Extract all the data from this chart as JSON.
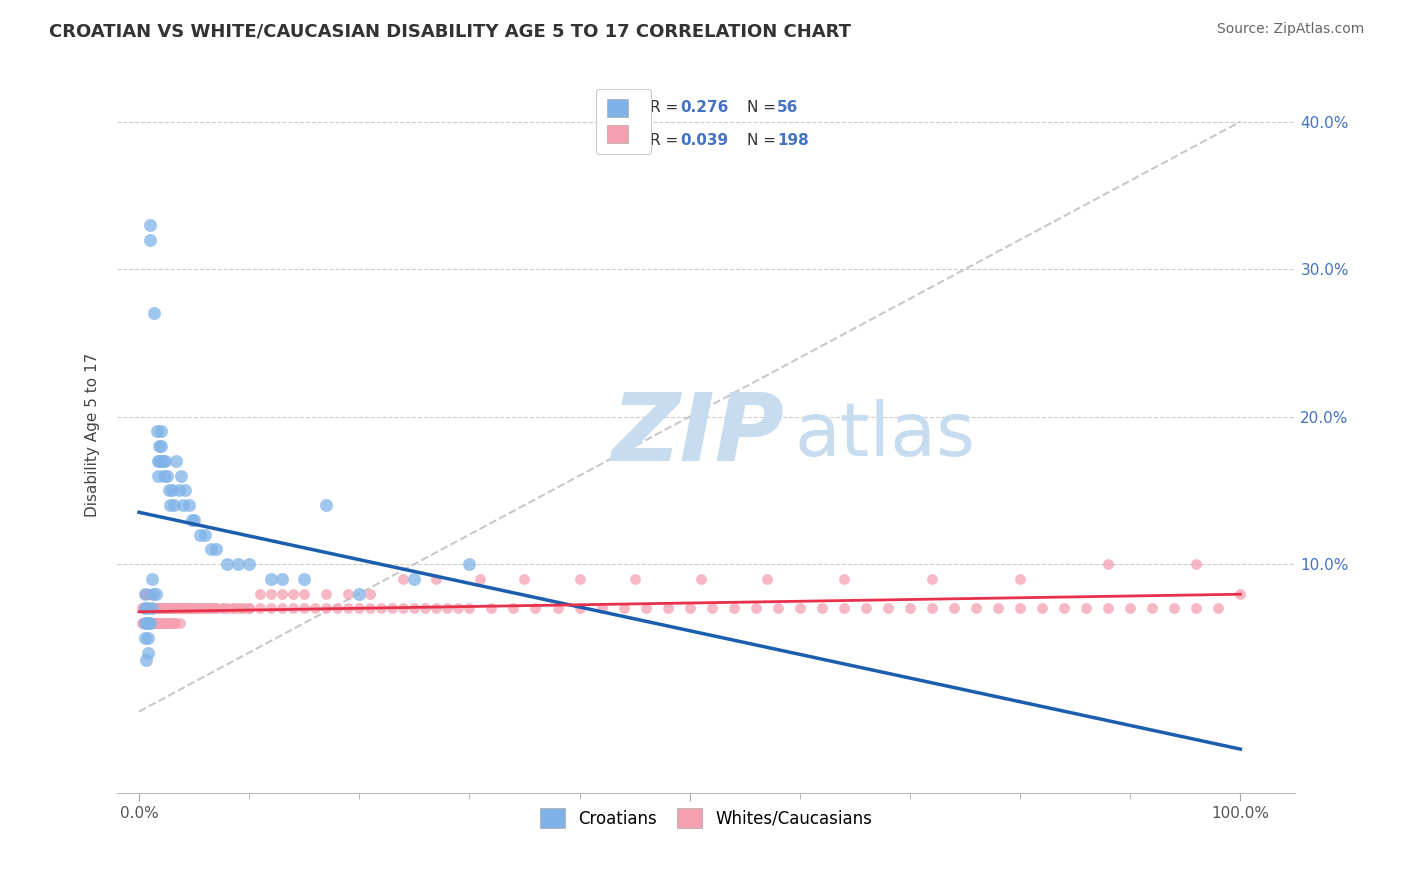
{
  "title": "CROATIAN VS WHITE/CAUCASIAN DISABILITY AGE 5 TO 17 CORRELATION CHART",
  "source": "Source: ZipAtlas.com",
  "ylabel": "Disability Age 5 to 17",
  "xlim": [
    -0.02,
    1.05
  ],
  "ylim": [
    -0.055,
    0.43
  ],
  "r_croatian": 0.276,
  "n_croatian": 56,
  "r_white": 0.039,
  "n_white": 198,
  "color_croatian": "#7FB3E8",
  "color_white": "#F4A0B0",
  "line_color_croatian": "#1B5EAD",
  "line_color_white": "#E8304A",
  "ref_line_color": "#BBBBBB",
  "title_color": "#333333",
  "source_color": "#666666",
  "legend_label_croatian": "Croatians",
  "legend_label_white": "Whites/Caucasians",
  "watermark_zip": "ZIP",
  "watermark_atlas": "atlas",
  "watermark_color_zip": "#C8DCF0",
  "watermark_color_atlas": "#C8DCF0",
  "grid_color": "#CCCCCC",
  "background_color": "#FFFFFF",
  "croatian_x": [
    0.005,
    0.005,
    0.005,
    0.005,
    0.006,
    0.007,
    0.007,
    0.008,
    0.008,
    0.009,
    0.01,
    0.01,
    0.01,
    0.012,
    0.012,
    0.013,
    0.014,
    0.015,
    0.016,
    0.017,
    0.017,
    0.018,
    0.018,
    0.02,
    0.02,
    0.021,
    0.022,
    0.023,
    0.024,
    0.025,
    0.027,
    0.028,
    0.03,
    0.032,
    0.034,
    0.036,
    0.038,
    0.04,
    0.042,
    0.045,
    0.048,
    0.05,
    0.055,
    0.06,
    0.065,
    0.07,
    0.08,
    0.09,
    0.1,
    0.12,
    0.13,
    0.15,
    0.17,
    0.2,
    0.25,
    0.3
  ],
  "croatian_y": [
    0.08,
    0.07,
    0.06,
    0.05,
    0.035,
    0.07,
    0.06,
    0.05,
    0.04,
    0.06,
    0.33,
    0.32,
    0.06,
    0.09,
    0.07,
    0.08,
    0.27,
    0.08,
    0.19,
    0.17,
    0.16,
    0.18,
    0.17,
    0.19,
    0.18,
    0.17,
    0.17,
    0.16,
    0.17,
    0.16,
    0.15,
    0.14,
    0.15,
    0.14,
    0.17,
    0.15,
    0.16,
    0.14,
    0.15,
    0.14,
    0.13,
    0.13,
    0.12,
    0.12,
    0.11,
    0.11,
    0.1,
    0.1,
    0.1,
    0.09,
    0.09,
    0.09,
    0.14,
    0.08,
    0.09,
    0.1
  ],
  "white_x": [
    0.003,
    0.004,
    0.005,
    0.005,
    0.005,
    0.005,
    0.005,
    0.005,
    0.006,
    0.006,
    0.006,
    0.007,
    0.007,
    0.007,
    0.008,
    0.008,
    0.008,
    0.009,
    0.009,
    0.009,
    0.01,
    0.01,
    0.01,
    0.01,
    0.011,
    0.011,
    0.011,
    0.012,
    0.012,
    0.013,
    0.013,
    0.014,
    0.014,
    0.015,
    0.015,
    0.016,
    0.016,
    0.017,
    0.017,
    0.018,
    0.018,
    0.019,
    0.02,
    0.02,
    0.021,
    0.022,
    0.022,
    0.023,
    0.024,
    0.025,
    0.025,
    0.026,
    0.027,
    0.028,
    0.029,
    0.03,
    0.031,
    0.032,
    0.033,
    0.034,
    0.035,
    0.036,
    0.037,
    0.038,
    0.04,
    0.041,
    0.042,
    0.044,
    0.045,
    0.046,
    0.048,
    0.05,
    0.052,
    0.055,
    0.058,
    0.06,
    0.063,
    0.065,
    0.068,
    0.07,
    0.075,
    0.08,
    0.085,
    0.09,
    0.095,
    0.1,
    0.11,
    0.12,
    0.13,
    0.14,
    0.15,
    0.16,
    0.17,
    0.18,
    0.19,
    0.2,
    0.21,
    0.22,
    0.23,
    0.24,
    0.25,
    0.26,
    0.27,
    0.28,
    0.29,
    0.3,
    0.32,
    0.34,
    0.36,
    0.38,
    0.4,
    0.42,
    0.44,
    0.46,
    0.48,
    0.5,
    0.52,
    0.54,
    0.56,
    0.58,
    0.6,
    0.62,
    0.64,
    0.66,
    0.68,
    0.7,
    0.72,
    0.74,
    0.76,
    0.78,
    0.8,
    0.82,
    0.84,
    0.86,
    0.88,
    0.9,
    0.92,
    0.94,
    0.96,
    0.98,
    1.0,
    0.003,
    0.004,
    0.005,
    0.006,
    0.007,
    0.008,
    0.009,
    0.01,
    0.011,
    0.012,
    0.013,
    0.014,
    0.015,
    0.016,
    0.017,
    0.018,
    0.019,
    0.02,
    0.022,
    0.024,
    0.026,
    0.028,
    0.03,
    0.033,
    0.036,
    0.04,
    0.044,
    0.048,
    0.053,
    0.058,
    0.064,
    0.07,
    0.077,
    0.085,
    0.093,
    0.1,
    0.11,
    0.12,
    0.13,
    0.14,
    0.15,
    0.17,
    0.19,
    0.21,
    0.24,
    0.27,
    0.31,
    0.35,
    0.4,
    0.45,
    0.51,
    0.57,
    0.64,
    0.72,
    0.8,
    0.88,
    0.96
  ],
  "white_y": [
    0.07,
    0.07,
    0.08,
    0.08,
    0.07,
    0.07,
    0.06,
    0.06,
    0.08,
    0.07,
    0.07,
    0.08,
    0.07,
    0.06,
    0.08,
    0.07,
    0.06,
    0.08,
    0.07,
    0.06,
    0.08,
    0.07,
    0.07,
    0.06,
    0.07,
    0.07,
    0.06,
    0.07,
    0.06,
    0.07,
    0.06,
    0.07,
    0.06,
    0.07,
    0.06,
    0.07,
    0.06,
    0.07,
    0.06,
    0.07,
    0.06,
    0.07,
    0.07,
    0.06,
    0.07,
    0.07,
    0.06,
    0.07,
    0.07,
    0.07,
    0.06,
    0.07,
    0.07,
    0.07,
    0.06,
    0.07,
    0.07,
    0.07,
    0.06,
    0.07,
    0.07,
    0.07,
    0.06,
    0.07,
    0.07,
    0.07,
    0.07,
    0.07,
    0.07,
    0.07,
    0.07,
    0.07,
    0.07,
    0.07,
    0.07,
    0.07,
    0.07,
    0.07,
    0.07,
    0.07,
    0.07,
    0.07,
    0.07,
    0.07,
    0.07,
    0.07,
    0.07,
    0.07,
    0.07,
    0.07,
    0.07,
    0.07,
    0.07,
    0.07,
    0.07,
    0.07,
    0.07,
    0.07,
    0.07,
    0.07,
    0.07,
    0.07,
    0.07,
    0.07,
    0.07,
    0.07,
    0.07,
    0.07,
    0.07,
    0.07,
    0.07,
    0.07,
    0.07,
    0.07,
    0.07,
    0.07,
    0.07,
    0.07,
    0.07,
    0.07,
    0.07,
    0.07,
    0.07,
    0.07,
    0.07,
    0.07,
    0.07,
    0.07,
    0.07,
    0.07,
    0.07,
    0.07,
    0.07,
    0.07,
    0.07,
    0.07,
    0.07,
    0.07,
    0.07,
    0.07,
    0.08,
    0.06,
    0.06,
    0.06,
    0.06,
    0.06,
    0.06,
    0.06,
    0.06,
    0.06,
    0.06,
    0.06,
    0.06,
    0.06,
    0.06,
    0.06,
    0.06,
    0.06,
    0.06,
    0.06,
    0.06,
    0.06,
    0.06,
    0.06,
    0.06,
    0.07,
    0.07,
    0.07,
    0.07,
    0.07,
    0.07,
    0.07,
    0.07,
    0.07,
    0.07,
    0.07,
    0.07,
    0.08,
    0.08,
    0.08,
    0.08,
    0.08,
    0.08,
    0.08,
    0.08,
    0.09,
    0.09,
    0.09,
    0.09,
    0.09,
    0.09,
    0.09,
    0.09,
    0.09,
    0.09,
    0.09,
    0.1,
    0.1
  ]
}
